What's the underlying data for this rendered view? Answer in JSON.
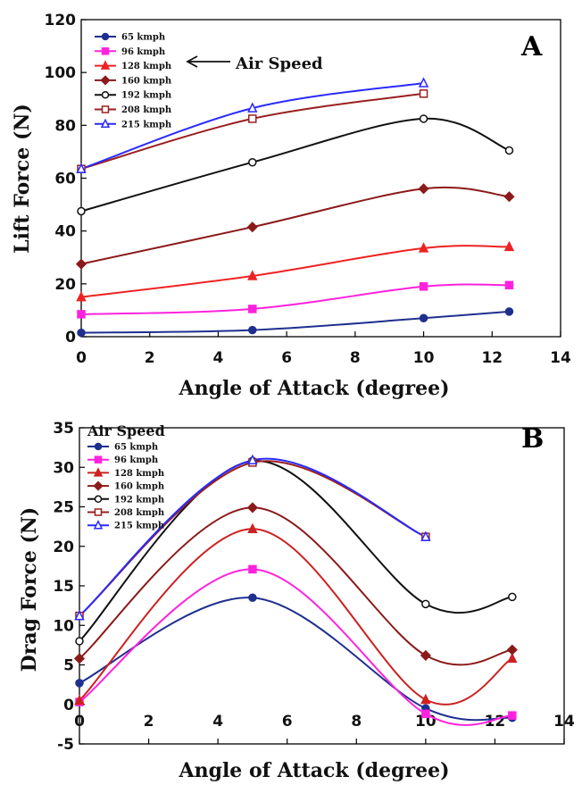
{
  "chart_data": [
    {
      "type": "line",
      "panel_label": "A",
      "xlabel": "Angle of Attack (degree)",
      "ylabel": "Lift Force (N)",
      "xlim": [
        0,
        14
      ],
      "ylim": [
        0,
        120
      ],
      "xticks": [
        0,
        2,
        4,
        6,
        8,
        10,
        12,
        14
      ],
      "yticks": [
        0,
        20,
        40,
        60,
        80,
        100,
        120
      ],
      "grid": false,
      "legend_position": "top-left",
      "annotation": "Air Speed",
      "series": [
        {
          "name": "65  kmph",
          "color": "#1f2f8f",
          "marker": "filled-circle",
          "x": [
            0,
            5,
            10,
            12.5
          ],
          "y": [
            1.5,
            2.5,
            7,
            9.5
          ]
        },
        {
          "name": "96  kmph",
          "color": "#ff22dd",
          "marker": "filled-square",
          "x": [
            0,
            5,
            10,
            12.5
          ],
          "y": [
            8.5,
            10.5,
            19,
            19.5
          ]
        },
        {
          "name": "128 kmph",
          "color": "#ee2222",
          "marker": "filled-triangle",
          "x": [
            0,
            5,
            10,
            12.5
          ],
          "y": [
            15,
            23,
            33.5,
            34
          ]
        },
        {
          "name": "160 kmph",
          "color": "#8b1a1a",
          "marker": "filled-diamond",
          "x": [
            0,
            5,
            10,
            12.5
          ],
          "y": [
            27.5,
            41.5,
            56,
            53
          ]
        },
        {
          "name": "192 kmph",
          "color": "#111111",
          "marker": "open-circle",
          "x": [
            0,
            5,
            10,
            12.5
          ],
          "y": [
            47.5,
            66,
            82.5,
            70.5
          ]
        },
        {
          "name": "208 kmph",
          "color": "#9a1f1f",
          "marker": "open-square",
          "x": [
            0,
            5,
            10
          ],
          "y": [
            63.5,
            82.5,
            92
          ]
        },
        {
          "name": "215 kmph",
          "color": "#2a2aff",
          "marker": "open-triangle",
          "x": [
            0,
            5,
            10
          ],
          "y": [
            63.5,
            86.5,
            96
          ]
        }
      ]
    },
    {
      "type": "line",
      "panel_label": "B",
      "xlabel": "Angle of Attack (degree)",
      "ylabel": "Drag Force (N)",
      "xlim": [
        0,
        14
      ],
      "ylim": [
        -5,
        35
      ],
      "xticks": [
        0,
        2,
        4,
        6,
        8,
        10,
        12,
        14
      ],
      "yticks": [
        -5,
        0,
        5,
        10,
        15,
        20,
        25,
        30,
        35
      ],
      "grid": false,
      "legend_position": "top-left",
      "legend_title": "Air Speed",
      "series": [
        {
          "name": "65 kmph",
          "color": "#1f2f8f",
          "marker": "filled-circle",
          "x": [
            0,
            5,
            10,
            12.5
          ],
          "y": [
            2.7,
            13.5,
            -0.5,
            -1.7
          ]
        },
        {
          "name": "96  kmph",
          "color": "#ff22dd",
          "marker": "filled-square",
          "x": [
            0,
            5,
            10,
            12.5
          ],
          "y": [
            0.3,
            17.1,
            -1.2,
            -1.4
          ]
        },
        {
          "name": "128 kmph",
          "color": "#cc2222",
          "marker": "filled-triangle",
          "x": [
            0,
            5,
            10,
            12.5
          ],
          "y": [
            0.5,
            22.2,
            0.6,
            5.8
          ]
        },
        {
          "name": "160 kmph",
          "color": "#8b1a1a",
          "marker": "filled-diamond",
          "x": [
            0,
            5,
            10,
            12.5
          ],
          "y": [
            5.8,
            24.9,
            6.2,
            6.9
          ]
        },
        {
          "name": "192 kmph",
          "color": "#111111",
          "marker": "open-circle",
          "x": [
            0,
            5,
            10,
            12.5
          ],
          "y": [
            8,
            30.8,
            12.7,
            13.6
          ]
        },
        {
          "name": "208 kmph",
          "color": "#9a1f1f",
          "marker": "open-square",
          "x": [
            0,
            5,
            10
          ],
          "y": [
            11.2,
            30.6,
            21.2
          ]
        },
        {
          "name": "215 kmph",
          "color": "#2a2aff",
          "marker": "open-triangle",
          "x": [
            0,
            5,
            10
          ],
          "y": [
            11.2,
            30.9,
            21.2
          ]
        }
      ]
    }
  ]
}
